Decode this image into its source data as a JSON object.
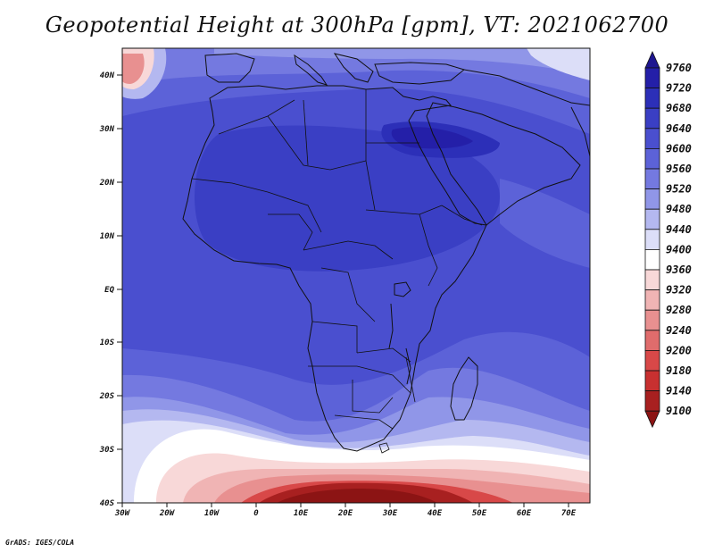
{
  "title": "Geopotential Height at 300hPa [gpm], VT: 2021062700",
  "credit": "GrADS: IGES/COLA",
  "lat_labels": [
    "40N",
    "30N",
    "20N",
    "10N",
    "EQ",
    "10S",
    "20S",
    "30S",
    "40S"
  ],
  "lon_labels": [
    "30W",
    "20W",
    "10W",
    "0",
    "10E",
    "20E",
    "30E",
    "40E",
    "50E",
    "60E",
    "70E"
  ],
  "colorbar": {
    "levels": [
      "9760",
      "9720",
      "9680",
      "9640",
      "9600",
      "9560",
      "9520",
      "9480",
      "9440",
      "9400",
      "9360",
      "9320",
      "9280",
      "9240",
      "9200",
      "9180",
      "9140",
      "9100"
    ],
    "colors": [
      "#1e1690",
      "#241fa8",
      "#2c2fb8",
      "#3a3fc4",
      "#4a4fcf",
      "#5c62d8",
      "#7479e0",
      "#9096e8",
      "#b4b8f0",
      "#dcdef8",
      "#ffffff",
      "#f8d8d8",
      "#f0b4b4",
      "#e89090",
      "#e06c6c",
      "#d84848",
      "#c83030",
      "#a82020",
      "#8c1414"
    ]
  },
  "map": {
    "projection": "latlon",
    "lon_range": [
      -30,
      75
    ],
    "lat_range": [
      -40,
      45
    ],
    "variable": "Geopotential Height 300hPa",
    "units": "gpm"
  }
}
